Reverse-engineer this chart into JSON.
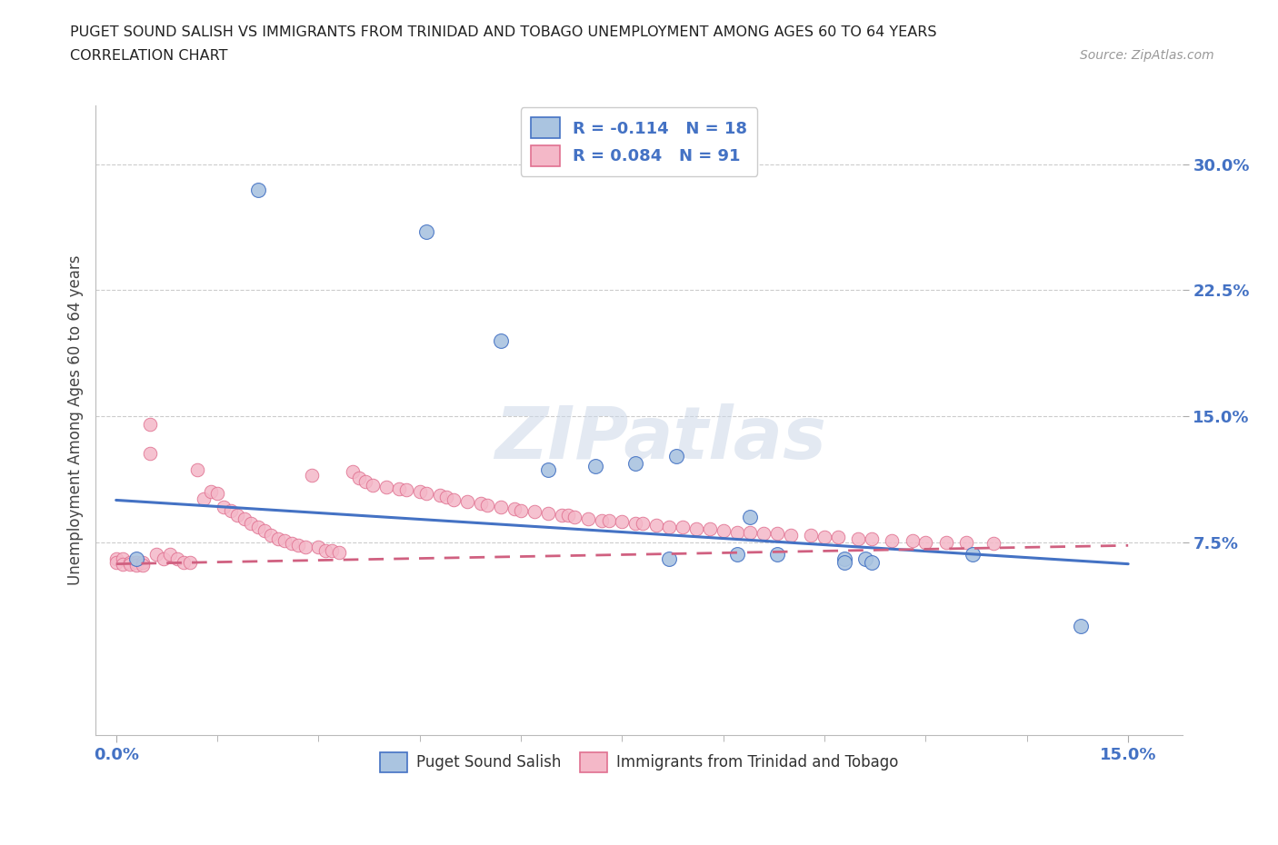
{
  "title_line1": "PUGET SOUND SALISH VS IMMIGRANTS FROM TRINIDAD AND TOBAGO UNEMPLOYMENT AMONG AGES 60 TO 64 YEARS",
  "title_line2": "CORRELATION CHART",
  "source": "Source: ZipAtlas.com",
  "xlim": [
    -0.003,
    0.158
  ],
  "ylim": [
    -0.04,
    0.335
  ],
  "ytick_vals": [
    0.075,
    0.15,
    0.225,
    0.3
  ],
  "ytick_labels": [
    "7.5%",
    "15.0%",
    "22.5%",
    "30.0%"
  ],
  "xtick_vals": [
    0.0,
    0.15
  ],
  "xtick_labels": [
    "0.0%",
    "15.0%"
  ],
  "color_blue_fill": "#aac4e0",
  "color_blue_edge": "#4472c4",
  "color_pink_fill": "#f4b8c8",
  "color_pink_edge": "#e07090",
  "color_line_blue": "#4472c4",
  "color_line_pink": "#d06080",
  "color_grid": "#cccccc",
  "watermark": "ZIPatlas",
  "legend_label1": "R = -0.114   N = 18",
  "legend_label2": "R = 0.084   N = 91",
  "legend_label_bottom1": "Puget Sound Salish",
  "legend_label_bottom2": "Immigrants from Trinidad and Tobago",
  "ylabel": "Unemployment Among Ages 60 to 64 years",
  "source_text": "Source: ZipAtlas.com",
  "blue_x": [
    0.021,
    0.046,
    0.064,
    0.071,
    0.077,
    0.082,
    0.083,
    0.092,
    0.094,
    0.098,
    0.108,
    0.108,
    0.111,
    0.112,
    0.127,
    0.143,
    0.003,
    0.057
  ],
  "blue_y": [
    0.285,
    0.26,
    0.118,
    0.12,
    0.122,
    0.065,
    0.126,
    0.068,
    0.09,
    0.068,
    0.065,
    0.063,
    0.065,
    0.063,
    0.068,
    0.025,
    0.065,
    0.195
  ],
  "pink_x": [
    0.0,
    0.0,
    0.001,
    0.001,
    0.002,
    0.002,
    0.003,
    0.003,
    0.004,
    0.004,
    0.005,
    0.005,
    0.006,
    0.007,
    0.008,
    0.009,
    0.01,
    0.011,
    0.012,
    0.013,
    0.014,
    0.015,
    0.016,
    0.017,
    0.018,
    0.019,
    0.02,
    0.021,
    0.022,
    0.023,
    0.024,
    0.025,
    0.026,
    0.027,
    0.028,
    0.029,
    0.03,
    0.031,
    0.032,
    0.033,
    0.035,
    0.036,
    0.037,
    0.038,
    0.04,
    0.042,
    0.043,
    0.045,
    0.046,
    0.048,
    0.049,
    0.05,
    0.052,
    0.054,
    0.055,
    0.057,
    0.059,
    0.06,
    0.062,
    0.064,
    0.066,
    0.067,
    0.068,
    0.07,
    0.072,
    0.073,
    0.075,
    0.077,
    0.078,
    0.08,
    0.082,
    0.084,
    0.086,
    0.088,
    0.09,
    0.092,
    0.094,
    0.096,
    0.098,
    0.1,
    0.103,
    0.105,
    0.107,
    0.11,
    0.112,
    0.115,
    0.118,
    0.12,
    0.123,
    0.126,
    0.13
  ],
  "pink_y": [
    0.065,
    0.063,
    0.065,
    0.062,
    0.063,
    0.062,
    0.063,
    0.061,
    0.063,
    0.061,
    0.145,
    0.128,
    0.068,
    0.065,
    0.068,
    0.065,
    0.063,
    0.063,
    0.118,
    0.101,
    0.105,
    0.104,
    0.096,
    0.094,
    0.091,
    0.089,
    0.086,
    0.084,
    0.082,
    0.079,
    0.077,
    0.076,
    0.074,
    0.073,
    0.072,
    0.115,
    0.072,
    0.07,
    0.07,
    0.069,
    0.117,
    0.113,
    0.111,
    0.109,
    0.108,
    0.107,
    0.106,
    0.105,
    0.104,
    0.103,
    0.102,
    0.1,
    0.099,
    0.098,
    0.097,
    0.096,
    0.095,
    0.094,
    0.093,
    0.092,
    0.091,
    0.091,
    0.09,
    0.089,
    0.088,
    0.088,
    0.087,
    0.086,
    0.086,
    0.085,
    0.084,
    0.084,
    0.083,
    0.083,
    0.082,
    0.081,
    0.081,
    0.08,
    0.08,
    0.079,
    0.079,
    0.078,
    0.078,
    0.077,
    0.077,
    0.076,
    0.076,
    0.075,
    0.075,
    0.075,
    0.074
  ],
  "blue_line_x0": 0.0,
  "blue_line_y0": 0.1,
  "blue_line_x1": 0.15,
  "blue_line_y1": 0.062,
  "pink_line_x0": 0.0,
  "pink_line_y0": 0.062,
  "pink_line_x1": 0.15,
  "pink_line_y1": 0.073
}
